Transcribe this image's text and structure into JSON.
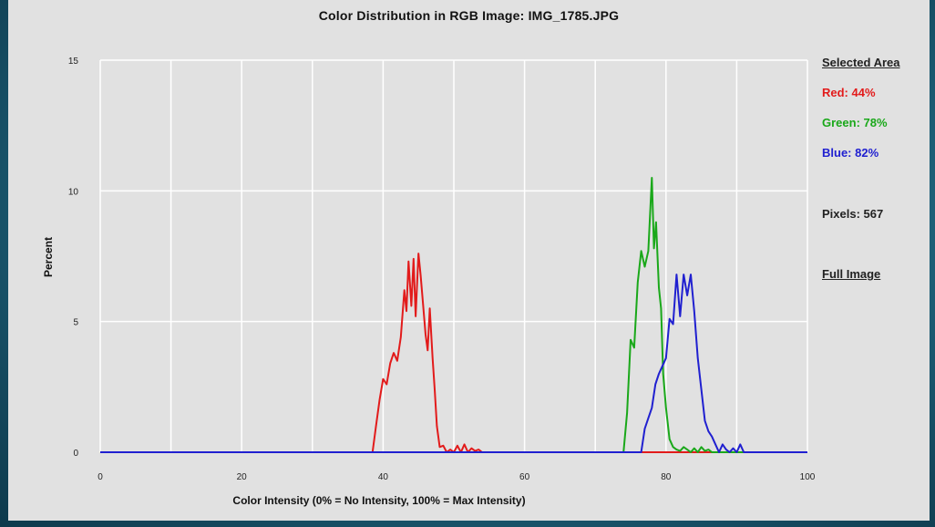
{
  "chart_data": {
    "type": "line",
    "title": "Color Distribution in RGB Image: IMG_1785.JPG",
    "xlabel": "Color Intensity (0% = No Intensity, 100% = Max Intensity)",
    "ylabel": "Percent",
    "xlim": [
      0,
      100
    ],
    "ylim": [
      0,
      15
    ],
    "xticks": [
      0,
      20,
      40,
      60,
      80,
      100
    ],
    "yticks": [
      0,
      5,
      10,
      15
    ],
    "grid": true,
    "series": [
      {
        "name": "Red",
        "color": "#e21b1b",
        "x": [
          0,
          38.5,
          39,
          39.5,
          40,
          40.5,
          41,
          41.5,
          42,
          42.5,
          43,
          43.3,
          43.6,
          44,
          44.3,
          44.6,
          45,
          45.3,
          45.6,
          46,
          46.3,
          46.6,
          47,
          47.3,
          47.6,
          48,
          48.5,
          49,
          49.5,
          50,
          50.5,
          51,
          51.5,
          52,
          52.5,
          53,
          53.5,
          54,
          100
        ],
        "y": [
          0,
          0,
          1.0,
          2.0,
          2.8,
          2.6,
          3.4,
          3.8,
          3.5,
          4.4,
          6.2,
          5.4,
          7.3,
          5.6,
          7.4,
          5.2,
          7.6,
          6.8,
          5.8,
          4.5,
          3.9,
          5.5,
          3.6,
          2.4,
          1.0,
          0.2,
          0.25,
          0,
          0.1,
          0,
          0.25,
          0,
          0.3,
          0,
          0.15,
          0.05,
          0.1,
          0,
          0
        ]
      },
      {
        "name": "Green",
        "color": "#1aa81a",
        "x": [
          0,
          74,
          74.5,
          75,
          75.5,
          76,
          76.5,
          77,
          77.5,
          78,
          78.3,
          78.6,
          79,
          79.3,
          79.6,
          80,
          80.5,
          81,
          81.5,
          82,
          82.5,
          83,
          83.5,
          84,
          84.5,
          85,
          85.5,
          86,
          86.5,
          87,
          100
        ],
        "y": [
          0,
          0,
          1.5,
          4.3,
          4.0,
          6.5,
          7.7,
          7.1,
          7.7,
          10.5,
          7.8,
          8.8,
          6.3,
          5.5,
          3.0,
          1.7,
          0.5,
          0.2,
          0.1,
          0.05,
          0.2,
          0.1,
          0,
          0.15,
          0,
          0.2,
          0.05,
          0.1,
          0,
          0,
          0
        ]
      },
      {
        "name": "Blue",
        "color": "#2020d0",
        "x": [
          0,
          76.5,
          77,
          77.5,
          78,
          78.5,
          79,
          79.5,
          80,
          80.5,
          81,
          81.5,
          82,
          82.5,
          83,
          83.5,
          84,
          84.5,
          85,
          85.5,
          86,
          86.5,
          87,
          87.5,
          88,
          88.5,
          89,
          89.5,
          90,
          90.5,
          91,
          100
        ],
        "y": [
          0,
          0,
          0.9,
          1.3,
          1.7,
          2.6,
          3.0,
          3.3,
          3.6,
          5.1,
          4.9,
          6.8,
          5.2,
          6.8,
          6.0,
          6.8,
          5.4,
          3.6,
          2.4,
          1.2,
          0.8,
          0.6,
          0.3,
          0,
          0.3,
          0.1,
          0,
          0.15,
          0,
          0.3,
          0,
          0
        ]
      }
    ]
  },
  "legend": {
    "heading": "Selected Area",
    "red": "Red: 44%",
    "green": "Green: 78%",
    "blue": "Blue: 82%",
    "pixels": "Pixels: 567",
    "full_image_link": "Full Image"
  }
}
